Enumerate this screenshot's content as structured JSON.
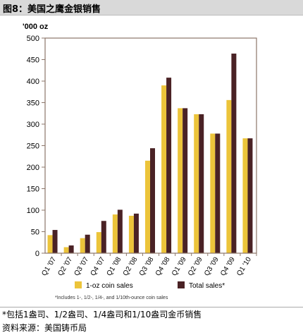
{
  "header": {
    "title": "图8：美国之鹰金银销售"
  },
  "footnotes": {
    "line1": "*包括1盎司、1/2盎司、1/4盎司和1/10盎司金币销售",
    "line2": "资料来源：美国铸币局"
  },
  "colors": {
    "oz_coin": "#ecc43a",
    "total": "#4a2225",
    "axis": "#8b7569"
  },
  "chart_data": {
    "type": "bar",
    "ylabel": "'000 oz",
    "ylim": [
      0,
      500
    ],
    "yticks": [
      0,
      50,
      100,
      150,
      200,
      250,
      300,
      350,
      400,
      450,
      500
    ],
    "categories": [
      "Q1 '07",
      "Q2 '07",
      "Q3 '07",
      "Q4 '07",
      "Q1 '08",
      "Q2 '08",
      "Q3 '08",
      "Q4 '08",
      "Q1 '09",
      "Q2 '09",
      "Q3 '09",
      "Q4 '09",
      "Q1 '10"
    ],
    "series": [
      {
        "name": "1-oz coin sales",
        "values": [
          42,
          14,
          35,
          49,
          90,
          87,
          215,
          390,
          337,
          323,
          278,
          356,
          267
        ]
      },
      {
        "name": "Total sales*",
        "values": [
          54,
          18,
          43,
          75,
          101,
          92,
          244,
          408,
          337,
          323,
          278,
          464,
          267
        ]
      }
    ],
    "footnote": "*Includes 1-, 1/2-, 1/4-, and 1/10th-ounce coin sales",
    "legend_position": "bottom"
  }
}
